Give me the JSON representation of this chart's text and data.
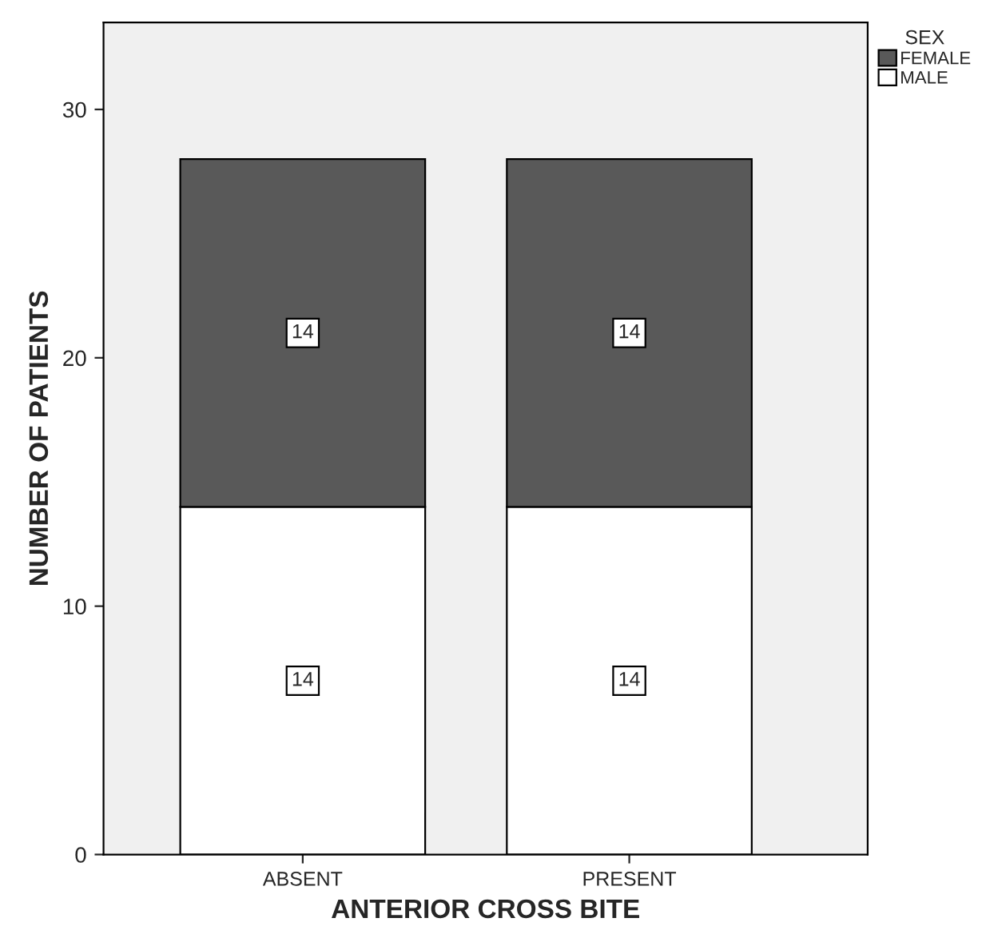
{
  "chart_data": {
    "type": "bar",
    "stacked": true,
    "xlabel": "ANTERIOR CROSS BITE",
    "ylabel": "NUMBER OF PATIENTS",
    "legend_title": "SEX",
    "legend": "top right",
    "categories": [
      "ABSENT",
      "PRESENT"
    ],
    "series": [
      {
        "name": "MALE",
        "color": "#ffffff",
        "values": [
          14,
          14
        ]
      },
      {
        "name": "FEMALE",
        "color": "#595959",
        "values": [
          14,
          14
        ]
      }
    ],
    "ylim": [
      0,
      33.5
    ],
    "yticks": [
      0,
      10,
      20,
      30
    ],
    "grid": false,
    "data_labels": true
  }
}
